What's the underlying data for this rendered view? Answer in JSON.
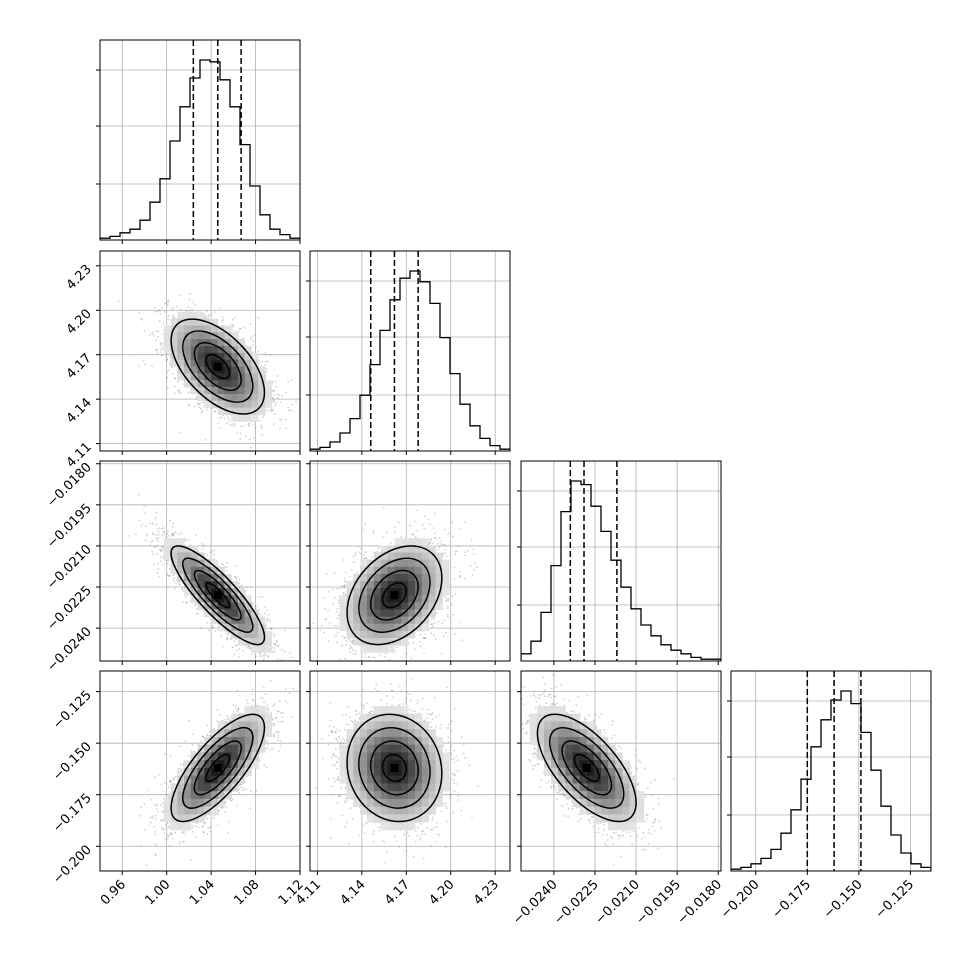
{
  "chart_data": {
    "type": "corner",
    "parameters": [
      {
        "ticks": [
          0.96,
          1.0,
          1.04,
          1.08,
          1.12
        ],
        "tick_labels": [
          "0.96",
          "1.00",
          "1.04",
          "1.08",
          "1.12"
        ],
        "range": [
          0.94,
          1.12
        ],
        "quantiles": [
          1.024,
          1.046,
          1.067
        ],
        "mean": 1.046,
        "sd": 0.021
      },
      {
        "ticks": [
          4.11,
          4.14,
          4.17,
          4.2,
          4.23
        ],
        "tick_labels": [
          "4.11",
          "4.14",
          "4.17",
          "4.20",
          "4.23"
        ],
        "range": [
          4.105,
          4.24
        ],
        "quantiles": [
          4.146,
          4.162,
          4.178
        ],
        "mean": 4.162,
        "sd": 0.016
      },
      {
        "ticks": [
          -0.024,
          -0.0225,
          -0.021,
          -0.0195,
          -0.018
        ],
        "tick_labels": [
          "−0.0240",
          "−0.0225",
          "−0.0210",
          "−0.0195",
          "−0.0180"
        ],
        "range": [
          -0.0252,
          -0.0179
        ],
        "quantiles": [
          -0.0234,
          -0.0229,
          -0.0217
        ],
        "mean": -0.0228,
        "sd": 0.0009
      },
      {
        "ticks": [
          -0.2,
          -0.175,
          -0.15,
          -0.125
        ],
        "tick_labels": [
          "−0.200",
          "−0.175",
          "−0.150",
          "−0.125"
        ],
        "range": [
          -0.212,
          -0.115
        ],
        "quantiles": [
          -0.175,
          -0.162,
          -0.149
        ],
        "mean": -0.162,
        "sd": 0.013
      }
    ],
    "histograms": [
      [
        0.01,
        0.02,
        0.04,
        0.06,
        0.11,
        0.21,
        0.34,
        0.55,
        0.74,
        0.9,
        1.0,
        0.99,
        0.89,
        0.74,
        0.53,
        0.3,
        0.14,
        0.06,
        0.03,
        0.01
      ],
      [
        0.01,
        0.02,
        0.05,
        0.1,
        0.18,
        0.31,
        0.48,
        0.67,
        0.84,
        0.96,
        1.0,
        0.94,
        0.82,
        0.63,
        0.43,
        0.26,
        0.14,
        0.07,
        0.03,
        0.01
      ],
      [
        0.04,
        0.11,
        0.27,
        0.53,
        0.83,
        1.0,
        0.98,
        0.86,
        0.72,
        0.56,
        0.41,
        0.29,
        0.2,
        0.14,
        0.09,
        0.06,
        0.04,
        0.02,
        0.01,
        0.01
      ],
      [
        0.01,
        0.02,
        0.04,
        0.07,
        0.12,
        0.21,
        0.34,
        0.51,
        0.69,
        0.84,
        0.95,
        1.0,
        0.93,
        0.77,
        0.56,
        0.36,
        0.2,
        0.1,
        0.04,
        0.02
      ]
    ],
    "correlations": [
      [
        1,
        -0.55,
        -0.85,
        0.75
      ],
      [
        -0.55,
        1,
        0.35,
        -0.1
      ],
      [
        -0.85,
        0.35,
        1,
        -0.65
      ],
      [
        0.75,
        -0.1,
        -0.65,
        1
      ]
    ],
    "grid": true,
    "quantile_lines": "dashed"
  }
}
